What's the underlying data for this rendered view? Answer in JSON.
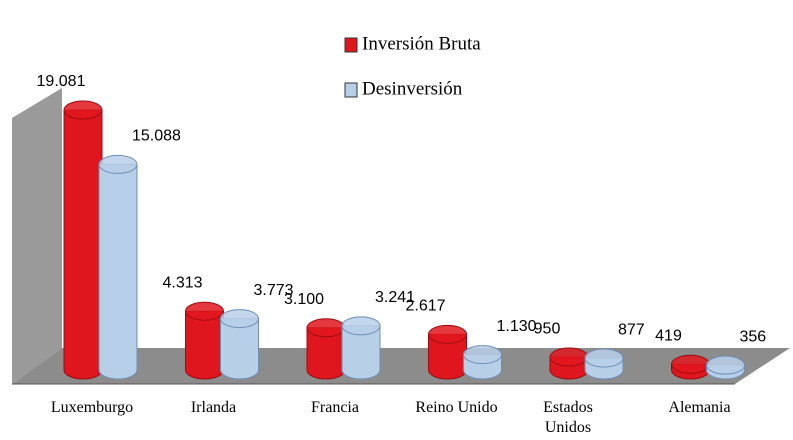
{
  "chart_data": {
    "type": "bar3d",
    "categories": [
      "Luxemburgo",
      "Irlanda",
      "Francia",
      "Reino Unido",
      "Estados Unidos",
      "Alemania"
    ],
    "series": [
      {
        "name": "Inversión Bruta",
        "color": "#e0161e",
        "values": [
          19081,
          4313,
          3100,
          2617,
          950,
          419
        ],
        "value_labels": [
          "19.081",
          "4.313",
          "3.100",
          "2.617",
          "950",
          "419"
        ]
      },
      {
        "name": "Desinversión",
        "color": "#b8cfe8",
        "values": [
          15088,
          3773,
          3241,
          1130,
          877,
          356
        ],
        "value_labels": [
          "15.088",
          "3.773",
          "3.241",
          "1.130",
          "877",
          "356"
        ]
      }
    ]
  }
}
